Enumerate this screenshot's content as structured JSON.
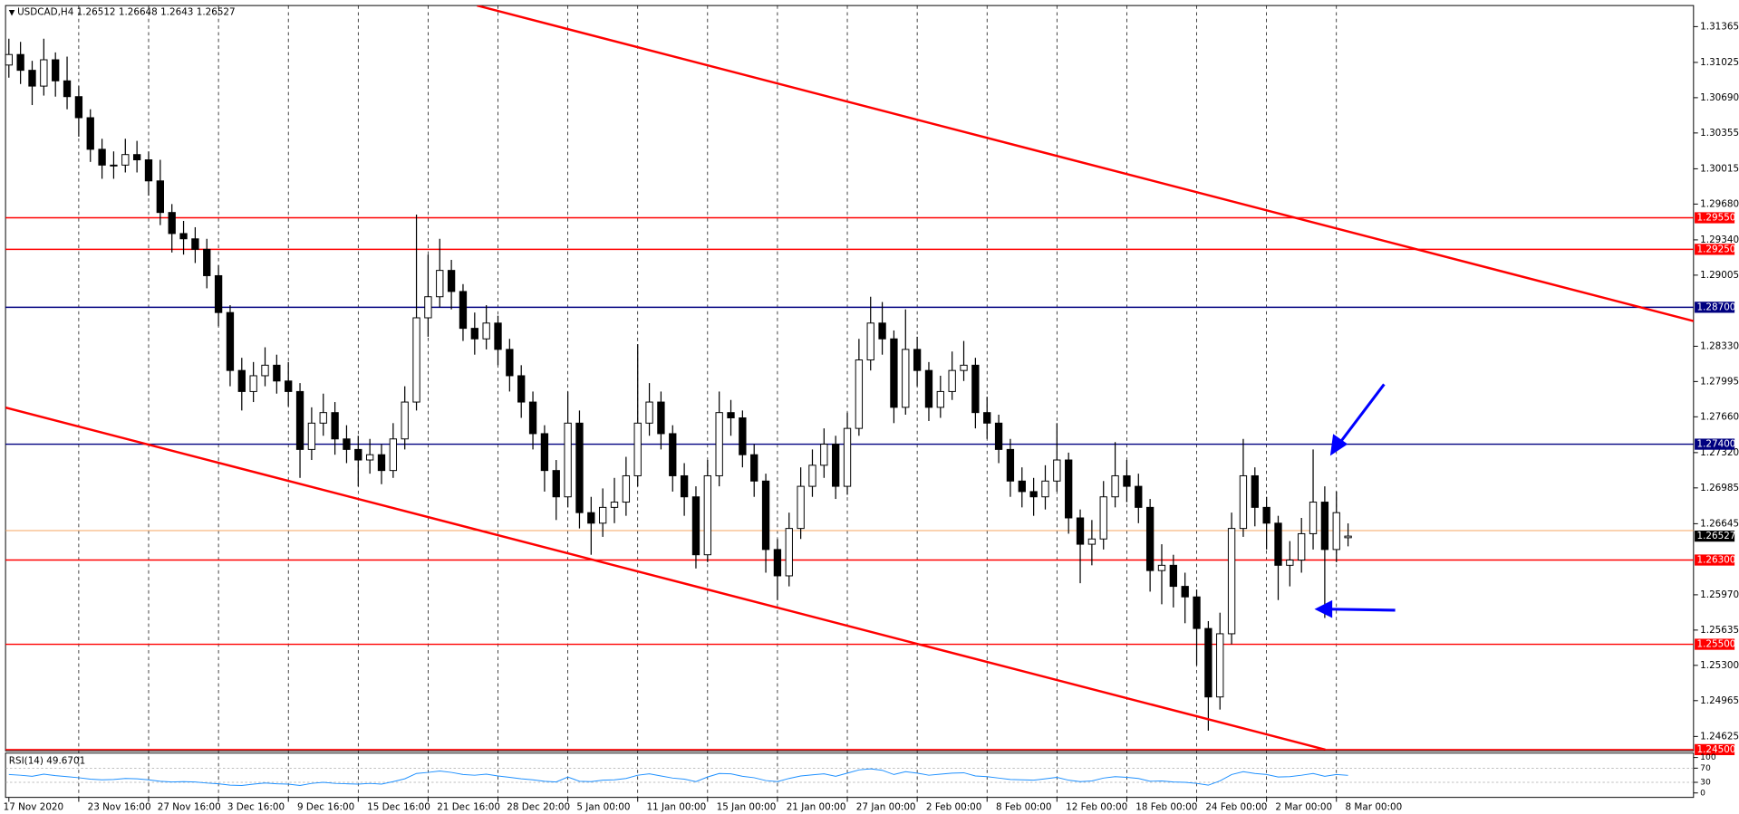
{
  "chart_data": {
    "type": "candlestick",
    "title": "USDCAD,H4",
    "categories": [
      "17 Nov 2020",
      null,
      null,
      null,
      null,
      null,
      "23 Nov 16:00",
      null,
      null,
      null,
      null,
      null,
      "27 Nov 16:00",
      null,
      null,
      null,
      null,
      null,
      "3 Dec 16:00",
      null,
      null,
      null,
      null,
      null,
      "9 Dec 16:00",
      null,
      null,
      null,
      null,
      null,
      "15 Dec 16:00",
      null,
      null,
      null,
      null,
      null,
      "21 Dec 16:00",
      null,
      null,
      null,
      null,
      null,
      "28 Dec 20:00",
      null,
      null,
      null,
      null,
      null,
      "5 Jan 00:00",
      null,
      null,
      null,
      null,
      null,
      "11 Jan 00:00",
      null,
      null,
      null,
      null,
      null,
      "15 Jan 00:00",
      null,
      null,
      null,
      null,
      null,
      "21 Jan 00:00",
      null,
      null,
      null,
      null,
      null,
      "27 Jan 00:00",
      null,
      null,
      null,
      null,
      null,
      "2 Feb 00:00",
      null,
      null,
      null,
      null,
      null,
      "8 Feb 00:00",
      null,
      null,
      null,
      null,
      null,
      "12 Feb 00:00",
      null,
      null,
      null,
      null,
      null,
      "18 Feb 00:00",
      null,
      null,
      null,
      null,
      null,
      "24 Feb 00:00",
      null,
      null,
      null,
      null,
      null,
      "2 Mar 00:00",
      null,
      null,
      null,
      null,
      null,
      "8 Mar 00:00",
      null
    ],
    "open": [
      1.31,
      1.311,
      1.3095,
      1.308,
      1.3105,
      1.3085,
      1.307,
      1.305,
      1.302,
      1.3005,
      1.3005,
      1.3015,
      1.301,
      1.299,
      1.296,
      1.294,
      1.2935,
      1.2925,
      1.29,
      1.2865,
      1.281,
      1.279,
      1.2805,
      1.2815,
      1.28,
      1.279,
      1.2735,
      1.276,
      1.277,
      1.2745,
      1.2735,
      1.2725,
      1.273,
      1.2715,
      1.2745,
      1.278,
      1.286,
      1.288,
      1.2905,
      1.2885,
      1.285,
      1.284,
      1.2855,
      1.283,
      1.2805,
      1.278,
      1.275,
      1.2715,
      1.269,
      1.276,
      1.2675,
      1.2665,
      1.268,
      1.2685,
      1.271,
      1.276,
      1.278,
      1.275,
      1.271,
      1.269,
      1.2635,
      1.271,
      1.277,
      1.2765,
      1.273,
      1.2705,
      1.264,
      1.2615,
      1.266,
      1.27,
      1.272,
      1.274,
      1.27,
      1.2755,
      1.282,
      1.2855,
      1.284,
      1.2775,
      1.283,
      1.281,
      1.2775,
      1.279,
      1.281,
      1.2815,
      1.277,
      1.276,
      1.2735,
      1.2705,
      1.2695,
      1.269,
      1.2705,
      1.2725,
      1.267,
      1.2645,
      1.265,
      1.269,
      1.271,
      1.27,
      1.268,
      1.262,
      1.2625,
      1.2605,
      1.2595,
      1.2565,
      1.25,
      1.256,
      1.266,
      1.271,
      1.268,
      1.2665,
      1.2625,
      1.263,
      1.2655,
      1.2685,
      1.264,
      1.26512
    ],
    "high": [
      1.3125,
      1.3122,
      1.3104,
      1.3125,
      1.3112,
      1.3108,
      1.308,
      1.3058,
      1.303,
      1.3018,
      1.303,
      1.3028,
      1.3018,
      1.301,
      1.2968,
      1.2952,
      1.2946,
      1.2935,
      1.291,
      1.2872,
      1.2822,
      1.2818,
      1.2832,
      1.2825,
      1.2818,
      1.2798,
      1.2775,
      1.2788,
      1.278,
      1.2758,
      1.2748,
      1.2745,
      1.274,
      1.276,
      1.2795,
      1.2958,
      1.292,
      1.2935,
      1.2915,
      1.2892,
      1.2865,
      1.2872,
      1.2862,
      1.284,
      1.2815,
      1.279,
      1.2758,
      1.2725,
      1.279,
      1.2772,
      1.269,
      1.2698,
      1.2708,
      1.2728,
      1.2835,
      1.2798,
      1.279,
      1.2758,
      1.2722,
      1.27,
      1.2725,
      1.279,
      1.2782,
      1.2772,
      1.274,
      1.2712,
      1.265,
      1.2675,
      1.2718,
      1.2735,
      1.2755,
      1.2748,
      1.277,
      1.284,
      1.288,
      1.2875,
      1.2848,
      1.2868,
      1.2842,
      1.2818,
      1.2805,
      1.2828,
      1.2838,
      1.2822,
      1.2785,
      1.2768,
      1.2745,
      1.2718,
      1.2708,
      1.272,
      1.276,
      1.2732,
      1.2678,
      1.2668,
      1.2705,
      1.2742,
      1.2725,
      1.2712,
      1.2688,
      1.2645,
      1.2635,
      1.2618,
      1.2602,
      1.2572,
      1.258,
      1.2675,
      1.2745,
      1.2718,
      1.269,
      1.2672,
      1.2648,
      1.267,
      1.2735,
      1.27,
      1.2695,
      1.26648
    ],
    "low": [
      1.3088,
      1.3082,
      1.3062,
      1.3071,
      1.307,
      1.3058,
      1.3032,
      1.3008,
      1.2992,
      1.2992,
      1.2998,
      1.2998,
      1.2976,
      1.2948,
      1.2922,
      1.292,
      1.2912,
      1.2888,
      1.2852,
      1.2795,
      1.2772,
      1.278,
      1.2795,
      1.2788,
      1.2776,
      1.2708,
      1.2725,
      1.2748,
      1.273,
      1.2722,
      1.27,
      1.2712,
      1.2702,
      1.2708,
      1.2735,
      1.2772,
      1.2842,
      1.287,
      1.2868,
      1.2838,
      1.2825,
      1.283,
      1.2815,
      1.279,
      1.2765,
      1.2735,
      1.2695,
      1.2668,
      1.268,
      1.266,
      1.2635,
      1.2652,
      1.2665,
      1.2672,
      1.27,
      1.2748,
      1.2735,
      1.2695,
      1.2672,
      1.2622,
      1.2628,
      1.27,
      1.2748,
      1.2718,
      1.269,
      1.2618,
      1.2592,
      1.2605,
      1.265,
      1.269,
      1.2708,
      1.2688,
      1.2692,
      1.2748,
      1.281,
      1.2825,
      1.276,
      1.2768,
      1.2795,
      1.2762,
      1.2765,
      1.2782,
      1.28,
      1.2755,
      1.2745,
      1.2722,
      1.269,
      1.268,
      1.2672,
      1.2678,
      1.2695,
      1.2655,
      1.2608,
      1.2625,
      1.264,
      1.268,
      1.2685,
      1.2665,
      1.26,
      1.2588,
      1.2585,
      1.257,
      1.253,
      1.2468,
      1.2488,
      1.255,
      1.2652,
      1.2662,
      1.264,
      1.2592,
      1.2605,
      1.2618,
      1.264,
      1.2575,
      1.2628,
      1.2643
    ],
    "close": [
      1.311,
      1.3095,
      1.308,
      1.3105,
      1.3085,
      1.307,
      1.305,
      1.302,
      1.3005,
      1.3005,
      1.3015,
      1.301,
      1.299,
      1.296,
      1.294,
      1.2935,
      1.2925,
      1.29,
      1.2865,
      1.281,
      1.279,
      1.2805,
      1.2815,
      1.28,
      1.279,
      1.2735,
      1.276,
      1.277,
      1.2745,
      1.2735,
      1.2725,
      1.273,
      1.2715,
      1.2745,
      1.278,
      1.286,
      1.288,
      1.2905,
      1.2885,
      1.285,
      1.284,
      1.2855,
      1.283,
      1.2805,
      1.278,
      1.275,
      1.2715,
      1.269,
      1.276,
      1.2675,
      1.2665,
      1.268,
      1.2685,
      1.271,
      1.276,
      1.278,
      1.275,
      1.271,
      1.269,
      1.2635,
      1.271,
      1.277,
      1.2765,
      1.273,
      1.2705,
      1.264,
      1.2615,
      1.266,
      1.27,
      1.272,
      1.274,
      1.27,
      1.2755,
      1.282,
      1.2855,
      1.284,
      1.2775,
      1.283,
      1.281,
      1.2775,
      1.279,
      1.281,
      1.2815,
      1.277,
      1.276,
      1.2735,
      1.2705,
      1.2695,
      1.269,
      1.2705,
      1.2725,
      1.267,
      1.2645,
      1.265,
      1.269,
      1.271,
      1.27,
      1.268,
      1.262,
      1.2625,
      1.2605,
      1.2595,
      1.2565,
      1.25,
      1.256,
      1.266,
      1.271,
      1.268,
      1.2665,
      1.2625,
      1.263,
      1.2655,
      1.2685,
      1.264,
      1.2675,
      1.26527
    ],
    "ylim": [
      1.24488,
      1.31565
    ],
    "yticks": [
      1.31365,
      1.31025,
      {
        "value": 1.3069,
        "label": "1.30690"
      },
      1.30355,
      1.30015,
      {
        "value": 1.2968,
        "label": "1.29680"
      },
      {
        "value": 1.2934,
        "label": "1.29340"
      },
      1.29005,
      {
        "value": 1.2833,
        "label": "1.28330"
      },
      1.27995,
      {
        "value": 1.2766,
        "label": "1.27660"
      },
      {
        "value": 1.2732,
        "label": "1.27320"
      },
      1.26985,
      1.26645,
      {
        "value": 1.2597,
        "label": "1.25970"
      },
      1.25635,
      {
        "value": 1.253,
        "label": "1.25300"
      },
      1.24965,
      1.24625
    ],
    "grid": true,
    "levels": [
      {
        "value": 1.2955,
        "label": "1.29550",
        "color": "#ff0000"
      },
      {
        "value": 1.2925,
        "label": "1.29250",
        "color": "#ff0000"
      },
      {
        "value": 1.287,
        "label": "1.28700",
        "color": "#000080"
      },
      {
        "value": 1.274,
        "label": "1.27400",
        "color": "#000080"
      },
      {
        "value": 1.263,
        "label": "1.26300",
        "color": "#ff0000"
      },
      {
        "value": 1.255,
        "label": "1.25500",
        "color": "#ff0000"
      },
      {
        "value": 1.245,
        "label": "1.24500",
        "color": "#ff0000"
      }
    ],
    "ask_line": {
      "value": 1.2658,
      "color": "#f4a460"
    },
    "trendlines": [
      {
        "x": [
          40.2,
          144.7
        ],
        "y": [
          1.31565,
          1.28568
        ],
        "color": "#ff0000"
      },
      {
        "x": [
          -0.3,
          113.05
        ],
        "y": [
          1.27748,
          1.245
        ],
        "color": "#ff0000"
      }
    ],
    "rsi": {
      "title": "RSI(14)",
      "color": "#1e90ff",
      "ylim": [
        0,
        100
      ],
      "yticks": [
        100,
        70,
        30,
        0
      ],
      "levels": [
        70,
        30
      ],
      "values": [
        52,
        50,
        47,
        53,
        49,
        46,
        43,
        39,
        37,
        38,
        41,
        40,
        37,
        33,
        31,
        32,
        31,
        28,
        26,
        22,
        21,
        25,
        28,
        26,
        25,
        21,
        27,
        30,
        27,
        26,
        25,
        27,
        25,
        32,
        40,
        55,
        58,
        62,
        58,
        52,
        50,
        53,
        48,
        44,
        40,
        37,
        33,
        31,
        45,
        33,
        32,
        36,
        37,
        41,
        50,
        54,
        48,
        42,
        39,
        32,
        45,
        55,
        54,
        47,
        43,
        35,
        32,
        41,
        48,
        51,
        54,
        47,
        56,
        65,
        68,
        64,
        52,
        60,
        56,
        50,
        53,
        56,
        57,
        48,
        46,
        42,
        38,
        37,
        36,
        40,
        44,
        36,
        32,
        34,
        42,
        46,
        44,
        41,
        33,
        34,
        31,
        30,
        27,
        22,
        34,
        52,
        60,
        55,
        52,
        45,
        46,
        50,
        55,
        47,
        52,
        49.6701
      ]
    }
  }
}
